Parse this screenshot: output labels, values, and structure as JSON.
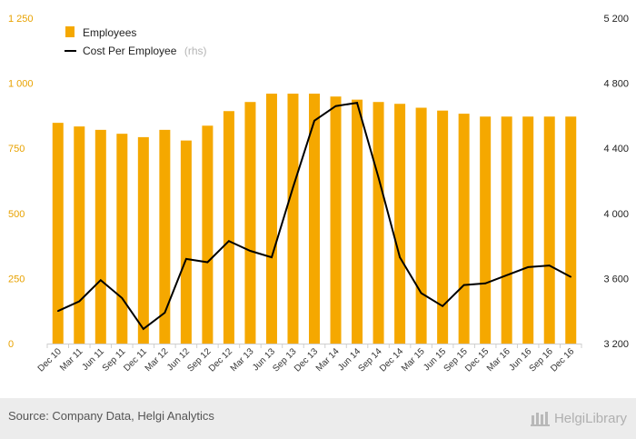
{
  "chart_data": {
    "type": "bar+line",
    "categories": [
      "Dec 10",
      "Mar 11",
      "Jun 11",
      "Sep 11",
      "Dec 11",
      "Mar 12",
      "Jun 12",
      "Sep 12",
      "Dec 12",
      "Mar 13",
      "Jun 13",
      "Sep 13",
      "Dec 13",
      "Mar 14",
      "Jun 14",
      "Sep 14",
      "Dec 14",
      "Mar 15",
      "Jun 15",
      "Sep 15",
      "Dec 15",
      "Mar 16",
      "Jun 16",
      "Sep 16",
      "Dec 16"
    ],
    "series": [
      {
        "name": "Employees",
        "type": "bar",
        "axis": "left",
        "color": "#f5a800",
        "values": [
          848,
          834,
          821,
          806,
          793,
          821,
          780,
          837,
          893,
          928,
          960,
          960,
          960,
          949,
          937,
          928,
          921,
          906,
          895,
          883,
          872,
          872,
          872,
          872,
          872
        ]
      },
      {
        "name": "Cost Per Employee",
        "name_suffix": "(rhs)",
        "type": "line",
        "axis": "right",
        "color": "#000000",
        "values": [
          3400,
          3460,
          3590,
          3480,
          3290,
          3390,
          3720,
          3700,
          3830,
          3770,
          3730,
          4160,
          4570,
          4660,
          4680,
          4220,
          3730,
          3510,
          3430,
          3560,
          3570,
          3620,
          3670,
          3680,
          3610
        ]
      }
    ],
    "left_axis": {
      "ticks": [
        "0",
        "250",
        "500",
        "750",
        "1 000",
        "1 250"
      ],
      "range": [
        0,
        1250
      ]
    },
    "right_axis": {
      "ticks": [
        "3 200",
        "3 600",
        "4 000",
        "4 400",
        "4 800",
        "5 200"
      ],
      "range": [
        3200,
        5200
      ]
    },
    "legend_position": "top-left",
    "grid": false
  },
  "footer": {
    "source": "Source: Company Data, Helgi Analytics",
    "logo_text": "HelgiLibrary"
  }
}
